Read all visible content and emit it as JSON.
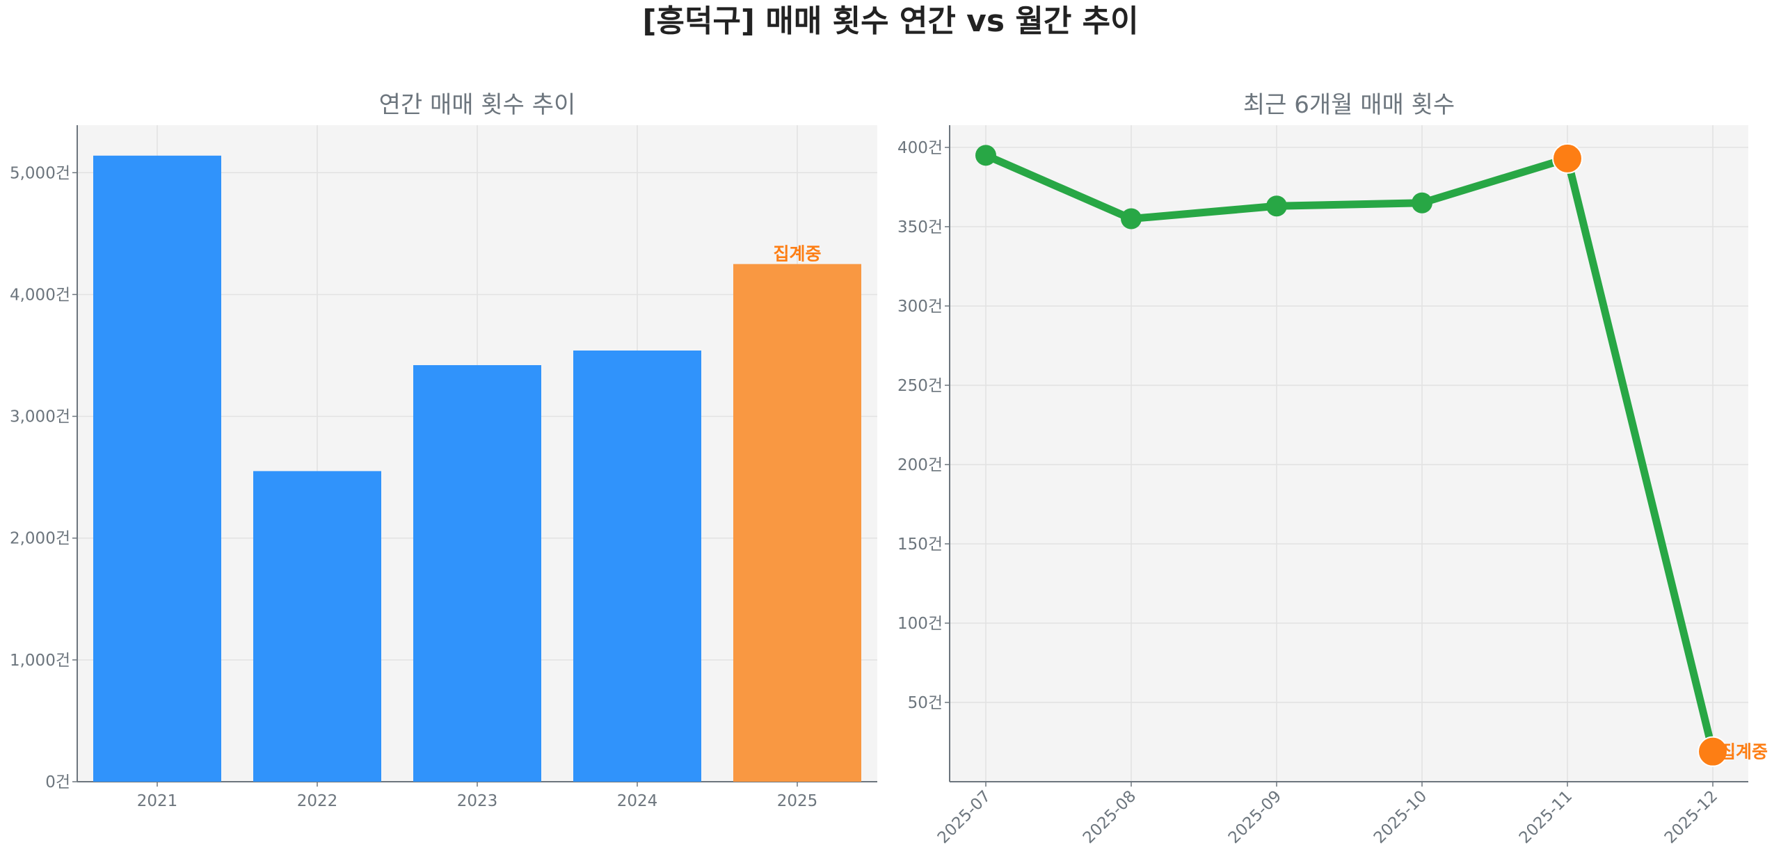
{
  "title": "[흥덕구] 매매 횟수 연간 vs 월간 추이",
  "colors": {
    "bar": "#3093fb",
    "bar_pending": "#f99842",
    "line": "#28a745",
    "point_highlight": "#fd7e14",
    "axes_bg": "#f4f4f4",
    "note": "#fd7e14"
  },
  "chart_data": [
    {
      "type": "bar",
      "title": "연간 매매 횟수 추이",
      "categories": [
        "2021",
        "2022",
        "2023",
        "2024",
        "2025"
      ],
      "values": [
        5140,
        2550,
        3420,
        3540,
        4250
      ],
      "ylim": [
        0,
        5390
      ],
      "yticks": [
        0,
        1000,
        2000,
        3000,
        4000,
        5000
      ],
      "ytick_labels": [
        "0건",
        "1,000건",
        "2,000건",
        "3,000건",
        "4,000건",
        "5,000건"
      ],
      "annotation": {
        "category": "2025",
        "text": "집계중"
      },
      "grid": true,
      "xlabel": "",
      "ylabel": ""
    },
    {
      "type": "line",
      "title": "최근 6개월 매매 횟수",
      "categories": [
        "2025-07",
        "2025-08",
        "2025-09",
        "2025-10",
        "2025-11",
        "2025-12"
      ],
      "values": [
        395,
        355,
        363,
        365,
        393,
        19
      ],
      "highlighted_points": [
        "2025-11",
        "2025-12"
      ],
      "ylim": [
        0,
        414
      ],
      "yticks": [
        50,
        100,
        150,
        200,
        250,
        300,
        350,
        400
      ],
      "ytick_labels": [
        "50건",
        "100건",
        "150건",
        "200건",
        "250건",
        "300건",
        "350건",
        "400건"
      ],
      "annotation": {
        "category": "2025-12",
        "text": "집계중"
      },
      "grid": true,
      "xlabel": "",
      "ylabel": ""
    }
  ]
}
